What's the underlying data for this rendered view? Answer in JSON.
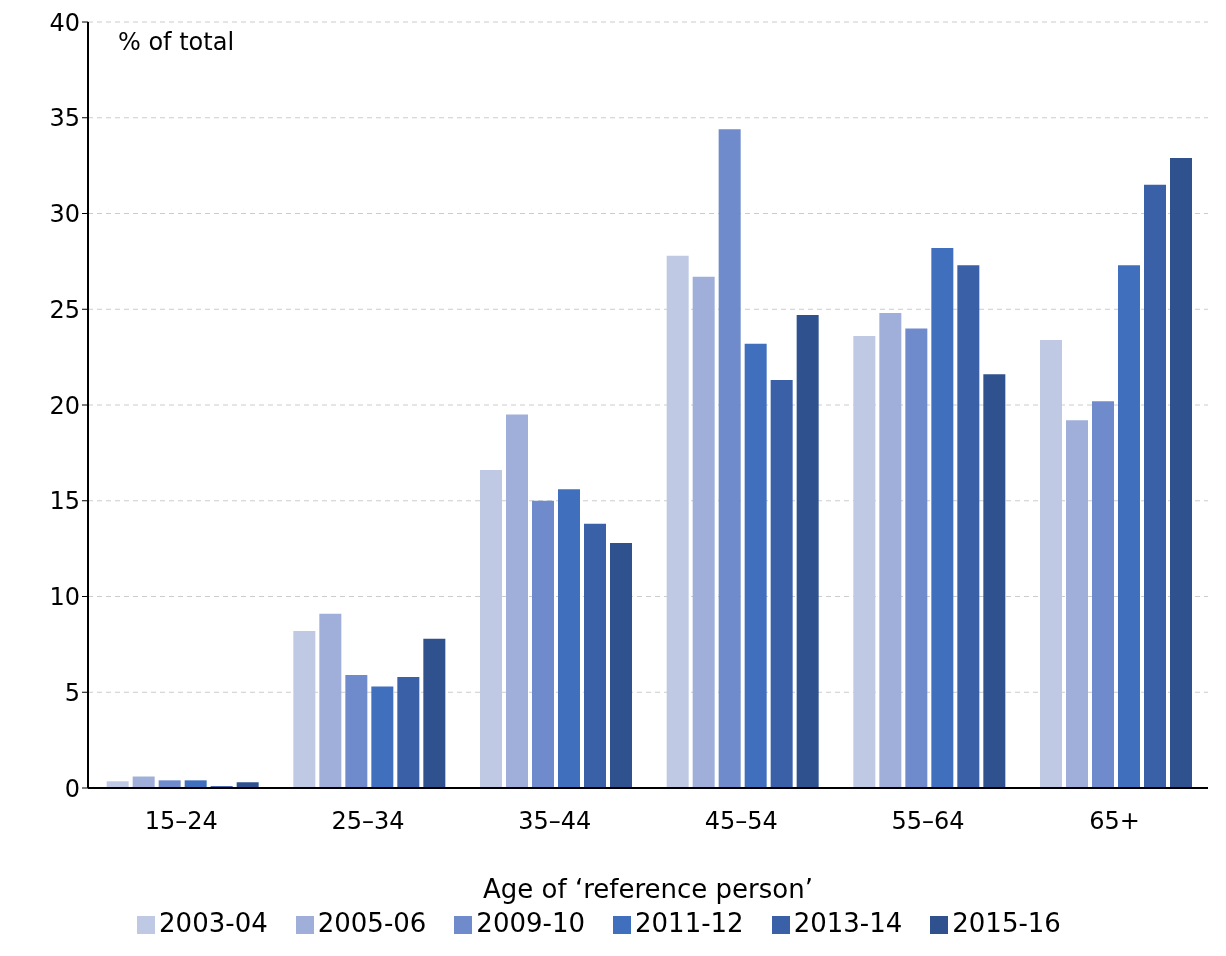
{
  "chart_data": {
    "type": "bar",
    "ylabel": "% of total",
    "xlabel": "Age of ‘reference person’",
    "categories": [
      "15–24",
      "25–34",
      "35–44",
      "45–54",
      "55–64",
      "65+"
    ],
    "series": [
      {
        "name": "2003-04",
        "color": "#bfc9e3",
        "values": [
          0.35,
          8.2,
          16.6,
          27.8,
          23.6,
          23.4
        ]
      },
      {
        "name": "2005-06",
        "color": "#9fafd9",
        "values": [
          0.6,
          9.1,
          19.5,
          26.7,
          24.8,
          19.2
        ]
      },
      {
        "name": "2009-10",
        "color": "#6f8bcb",
        "values": [
          0.4,
          5.9,
          15.0,
          34.4,
          24.0,
          20.2
        ]
      },
      {
        "name": "2011-12",
        "color": "#3f6fbd",
        "values": [
          0.4,
          5.3,
          15.6,
          23.2,
          28.2,
          27.3
        ]
      },
      {
        "name": "2013-14",
        "color": "#3a60a8",
        "values": [
          0.1,
          5.8,
          13.8,
          21.3,
          27.3,
          31.5
        ]
      },
      {
        "name": "2015-16",
        "color": "#2f528f",
        "values": [
          0.3,
          7.8,
          12.8,
          24.7,
          21.6,
          32.9
        ]
      }
    ],
    "ylim": [
      0,
      40
    ],
    "yticks": [
      0,
      5,
      10,
      15,
      20,
      25,
      30,
      35,
      40
    ],
    "grid": "y",
    "legend": "bottom"
  }
}
